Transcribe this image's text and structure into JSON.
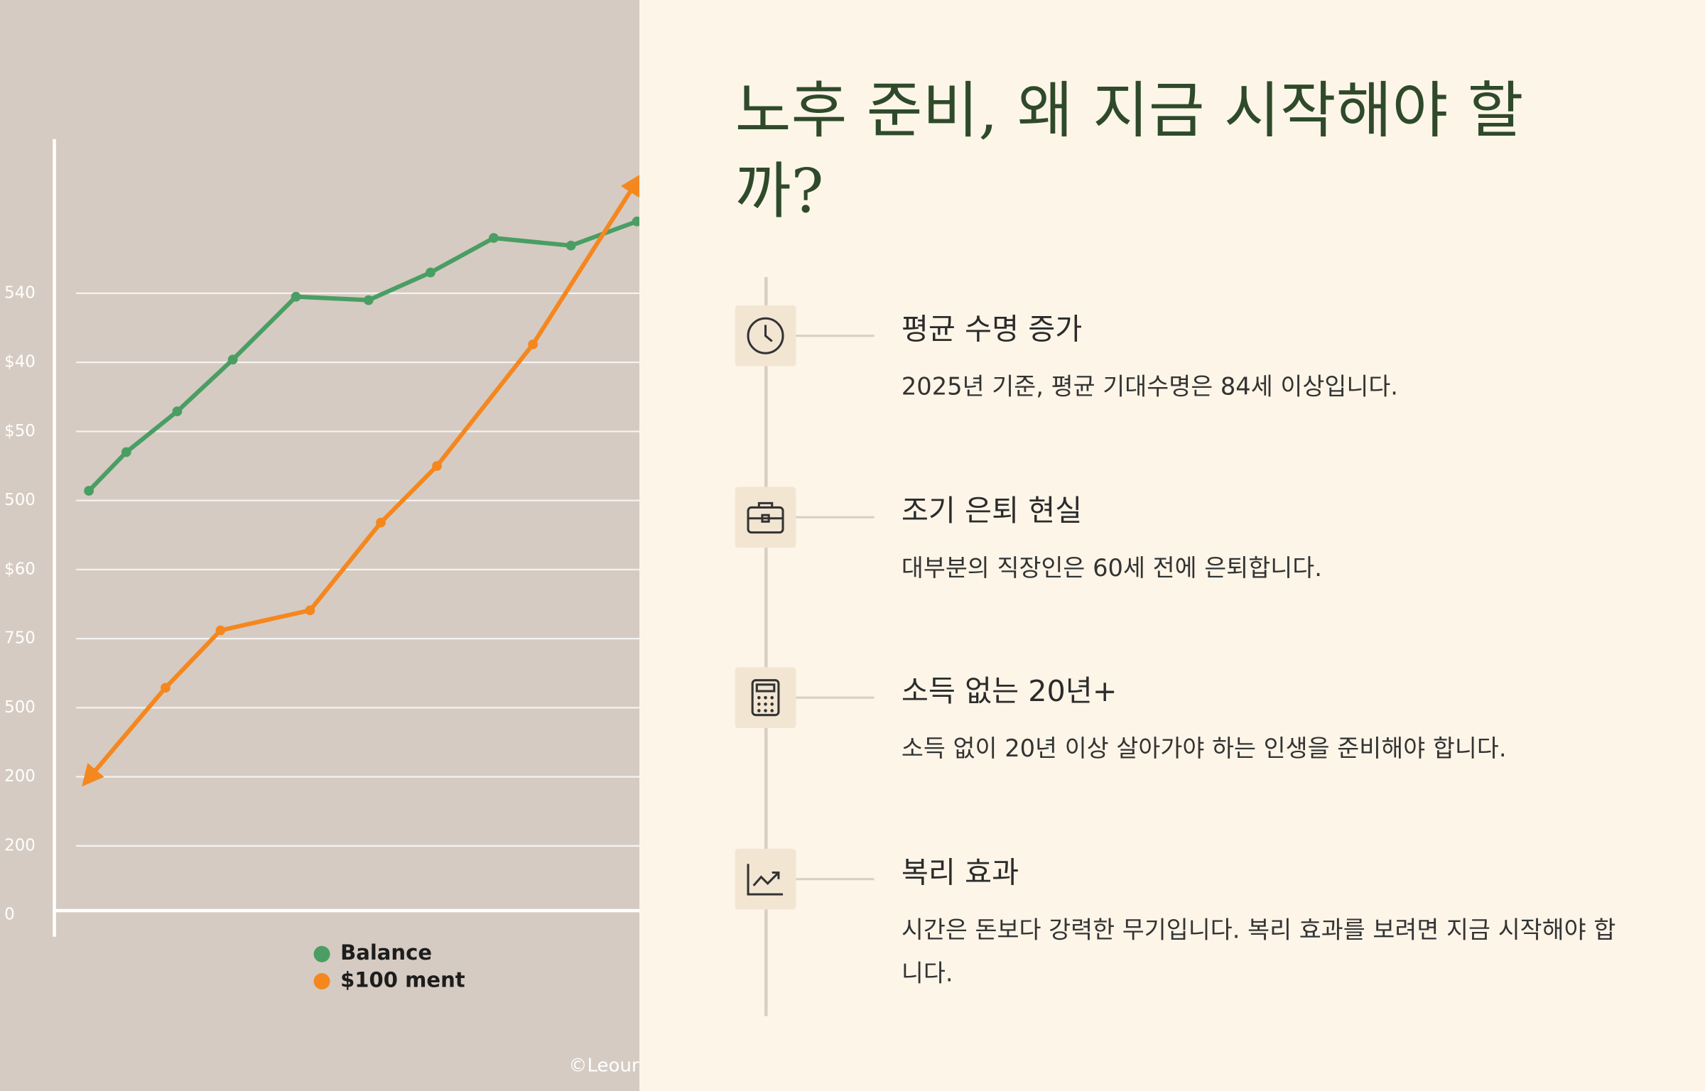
{
  "chart_data": {
    "type": "line",
    "yticks": [
      {
        "value": 9,
        "label": "540"
      },
      {
        "value": 8,
        "label": "$40"
      },
      {
        "value": 7,
        "label": "$50"
      },
      {
        "value": 6,
        "label": "500"
      },
      {
        "value": 5,
        "label": "$60"
      },
      {
        "value": 4,
        "label": "750"
      },
      {
        "value": 3,
        "label": "500"
      },
      {
        "value": 2,
        "label": "200"
      },
      {
        "value": 1,
        "label": "200"
      },
      0
    ],
    "ylim": [
      0,
      11.2
    ],
    "xlim": [
      0,
      10
    ],
    "grid": true,
    "series": [
      {
        "name": "Balance",
        "color": "#4a9e63",
        "x": [
          0.59,
          1.23,
          2.1,
          3.05,
          4.13,
          5.37,
          6.43,
          7.51,
          8.83,
          9.96
        ],
        "values": [
          6.14,
          6.7,
          7.29,
          8.04,
          8.95,
          8.9,
          9.3,
          9.8,
          9.69,
          10.04
        ]
      },
      {
        "name": "$100 ment",
        "color": "#f5871f",
        "x": [
          0.59,
          1.9,
          2.84,
          4.37,
          5.58,
          6.54,
          8.18,
          9.94
        ],
        "values": [
          1.98,
          3.29,
          4.12,
          4.41,
          5.68,
          6.5,
          8.26,
          10.6
        ]
      }
    ],
    "watermark": "©Leour"
  },
  "title": "노후 준비, 왜 지금 시작해야 할 까?",
  "items": [
    {
      "heading": "평균 수명 증가",
      "text": "2025년 기준, 평균 기대수명은 84세 이상입니다."
    },
    {
      "heading": "조기 은퇴 현실",
      "text": "대부분의 직장인은 60세 전에 은퇴합니다."
    },
    {
      "heading": "소득 없는 20년+",
      "text": "소득 없이 20년 이상 살아가야 하는 인생을 준비해야 합니다."
    },
    {
      "heading": "복리 효과",
      "text": "시간은 돈보다 강력한 무기입니다. 복리 효과를 보려면 지금 시작해야 합니다."
    }
  ]
}
